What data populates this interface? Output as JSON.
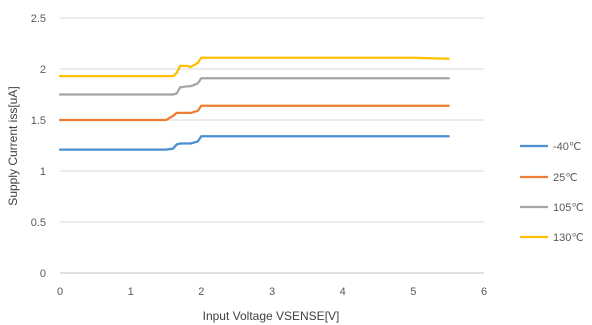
{
  "chart_data": {
    "type": "line",
    "title": "",
    "xlabel": "Input Voltage VSENSE[V]",
    "ylabel": "Supply Current iss[uA]",
    "xlim": [
      0,
      6
    ],
    "ylim": [
      0,
      2.5
    ],
    "xticks": [
      "0",
      "1",
      "2",
      "3",
      "4",
      "5",
      "6"
    ],
    "yticks": [
      "0",
      "0.5",
      "1",
      "1.5",
      "2",
      "2.5"
    ],
    "grid": true,
    "legend_position": "right",
    "x": [
      0,
      0.5,
      1.0,
      1.5,
      1.6,
      1.65,
      1.7,
      1.8,
      1.85,
      1.95,
      2.0,
      2.5,
      3.0,
      3.5,
      4.0,
      4.5,
      5.0,
      5.5
    ],
    "series": [
      {
        "name": "-40℃",
        "color": "#4A8FD0",
        "values": [
          1.21,
          1.21,
          1.21,
          1.21,
          1.22,
          1.26,
          1.27,
          1.27,
          1.27,
          1.29,
          1.34,
          1.34,
          1.34,
          1.34,
          1.34,
          1.34,
          1.34,
          1.34
        ]
      },
      {
        "name": "25℃",
        "color": "#ED7D31",
        "values": [
          1.5,
          1.5,
          1.5,
          1.5,
          1.54,
          1.57,
          1.57,
          1.57,
          1.57,
          1.59,
          1.64,
          1.64,
          1.64,
          1.64,
          1.64,
          1.64,
          1.64,
          1.64
        ]
      },
      {
        "name": "105℃",
        "color": "#A5A5A5",
        "values": [
          1.75,
          1.75,
          1.75,
          1.75,
          1.75,
          1.76,
          1.82,
          1.83,
          1.83,
          1.86,
          1.91,
          1.91,
          1.91,
          1.91,
          1.91,
          1.91,
          1.91,
          1.91
        ]
      },
      {
        "name": "130℃",
        "color": "#FFC000",
        "values": [
          1.93,
          1.93,
          1.93,
          1.93,
          1.93,
          1.96,
          2.03,
          2.03,
          2.02,
          2.06,
          2.11,
          2.11,
          2.11,
          2.11,
          2.11,
          2.11,
          2.11,
          2.1
        ]
      }
    ]
  }
}
